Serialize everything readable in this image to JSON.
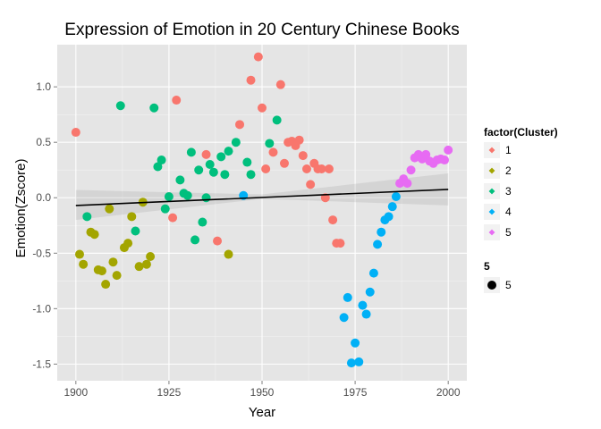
{
  "chart_data": {
    "type": "scatter",
    "title": "Expression of Emotion in 20 Century Chinese Books",
    "xlabel": "Year",
    "ylabel": "Emotion(Zscore)",
    "xlim": [
      1895,
      2005
    ],
    "ylim": [
      -1.65,
      1.38
    ],
    "x_ticks": [
      1900,
      1925,
      1950,
      1975,
      2000
    ],
    "y_ticks": [
      -1.5,
      -1.0,
      -0.5,
      0.0,
      0.5,
      1.0
    ],
    "x_tick_labels": [
      "1900",
      "1925",
      "1950",
      "1975",
      "2000"
    ],
    "y_tick_labels": [
      "-1.5",
      "-1.0",
      "-0.5",
      "0.0",
      "0.5",
      "1.0"
    ],
    "grid": true,
    "legend_placement": "right",
    "legend_title": "factor(Cluster)",
    "size_legend": {
      "title": "5",
      "label": "5"
    },
    "series": [
      {
        "name": "1",
        "color": "#F8766D",
        "points": [
          [
            1900,
            0.59
          ],
          [
            1926,
            -0.18
          ],
          [
            1927,
            0.88
          ],
          [
            1935,
            0.39
          ],
          [
            1938,
            -0.39
          ],
          [
            1944,
            0.66
          ],
          [
            1947,
            1.06
          ],
          [
            1949,
            1.27
          ],
          [
            1950,
            0.81
          ],
          [
            1951,
            0.26
          ],
          [
            1953,
            0.41
          ],
          [
            1955,
            1.02
          ],
          [
            1956,
            0.31
          ],
          [
            1957,
            0.5
          ],
          [
            1958,
            0.51
          ],
          [
            1959,
            0.47
          ],
          [
            1960,
            0.52
          ],
          [
            1961,
            0.38
          ],
          [
            1962,
            0.26
          ],
          [
            1963,
            0.12
          ],
          [
            1964,
            0.31
          ],
          [
            1965,
            0.26
          ],
          [
            1966,
            0.26
          ],
          [
            1967,
            0.0
          ],
          [
            1968,
            0.26
          ],
          [
            1969,
            -0.2
          ],
          [
            1970,
            -0.41
          ],
          [
            1971,
            -0.41
          ]
        ]
      },
      {
        "name": "2",
        "color": "#A3A500",
        "points": [
          [
            1901,
            -0.51
          ],
          [
            1902,
            -0.6
          ],
          [
            1904,
            -0.31
          ],
          [
            1905,
            -0.33
          ],
          [
            1906,
            -0.65
          ],
          [
            1907,
            -0.66
          ],
          [
            1908,
            -0.78
          ],
          [
            1909,
            -0.1
          ],
          [
            1910,
            -0.58
          ],
          [
            1911,
            -0.7
          ],
          [
            1913,
            -0.45
          ],
          [
            1914,
            -0.41
          ],
          [
            1915,
            -0.17
          ],
          [
            1917,
            -0.62
          ],
          [
            1918,
            -0.04
          ],
          [
            1919,
            -0.6
          ],
          [
            1920,
            -0.53
          ],
          [
            1941,
            -0.51
          ]
        ]
      },
      {
        "name": "3",
        "color": "#00BF7D",
        "points": [
          [
            1903,
            -0.17
          ],
          [
            1912,
            0.83
          ],
          [
            1916,
            -0.3
          ],
          [
            1921,
            0.81
          ],
          [
            1922,
            0.28
          ],
          [
            1923,
            0.34
          ],
          [
            1924,
            -0.1
          ],
          [
            1925,
            0.01
          ],
          [
            1928,
            0.16
          ],
          [
            1929,
            0.04
          ],
          [
            1930,
            0.02
          ],
          [
            1931,
            0.41
          ],
          [
            1932,
            -0.38
          ],
          [
            1933,
            0.25
          ],
          [
            1934,
            -0.22
          ],
          [
            1935,
            0.0
          ],
          [
            1936,
            0.3
          ],
          [
            1937,
            0.23
          ],
          [
            1939,
            0.37
          ],
          [
            1940,
            0.21
          ],
          [
            1941,
            0.42
          ],
          [
            1943,
            0.5
          ],
          [
            1946,
            0.32
          ],
          [
            1947,
            0.21
          ],
          [
            1952,
            0.49
          ],
          [
            1954,
            0.7
          ]
        ]
      },
      {
        "name": "4",
        "color": "#00B0F6",
        "points": [
          [
            1945,
            0.02
          ],
          [
            1972,
            -1.08
          ],
          [
            1973,
            -0.9
          ],
          [
            1974,
            -1.49
          ],
          [
            1975,
            -1.31
          ],
          [
            1976,
            -1.48
          ],
          [
            1977,
            -0.97
          ],
          [
            1978,
            -1.05
          ],
          [
            1979,
            -0.85
          ],
          [
            1980,
            -0.68
          ],
          [
            1981,
            -0.42
          ],
          [
            1982,
            -0.31
          ],
          [
            1983,
            -0.2
          ],
          [
            1984,
            -0.17
          ],
          [
            1985,
            -0.08
          ],
          [
            1986,
            0.01
          ]
        ]
      },
      {
        "name": "5",
        "color": "#E76BF3",
        "points": [
          [
            1987,
            0.13
          ],
          [
            1988,
            0.17
          ],
          [
            1989,
            0.13
          ],
          [
            1990,
            0.25
          ],
          [
            1991,
            0.36
          ],
          [
            1992,
            0.39
          ],
          [
            1993,
            0.35
          ],
          [
            1994,
            0.39
          ],
          [
            1995,
            0.33
          ],
          [
            1996,
            0.31
          ],
          [
            1997,
            0.34
          ],
          [
            1998,
            0.35
          ],
          [
            1999,
            0.34
          ],
          [
            2000,
            0.43
          ]
        ]
      }
    ],
    "trend_line": {
      "x": [
        1900,
        2000
      ],
      "y": [
        -0.07,
        0.075
      ]
    },
    "confidence_band": {
      "x": [
        1900,
        1950,
        2000
      ],
      "lower": [
        -0.2,
        -0.01,
        -0.07
      ],
      "upper": [
        0.07,
        0.03,
        0.22
      ]
    }
  }
}
